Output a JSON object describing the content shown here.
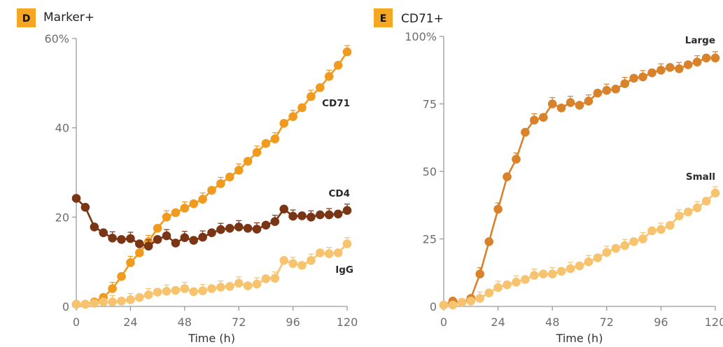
{
  "colors": {
    "label_box": "#F5A623",
    "axis": "#9a9a9a",
    "cd71": "#F09A1E",
    "cd4": "#7A3515",
    "igg": "#F7C36E",
    "large": "#D9822B",
    "small": "#F7C36E"
  },
  "chart_data": [
    {
      "type": "line",
      "panel_label": "D",
      "title": "Marker+",
      "xlabel": "Time (h)",
      "ylabel": "",
      "xlim": [
        0,
        120
      ],
      "ylim": [
        0,
        60
      ],
      "x_ticks": [
        "0",
        "24",
        "48",
        "72",
        "96",
        "120"
      ],
      "y_ticks": [
        "0",
        "20",
        "40",
        "60%"
      ],
      "x": [
        0,
        4,
        8,
        12,
        16,
        20,
        24,
        28,
        32,
        36,
        40,
        44,
        48,
        52,
        56,
        60,
        64,
        68,
        72,
        76,
        80,
        84,
        88,
        92,
        96,
        100,
        104,
        108,
        112,
        116,
        120
      ],
      "series": [
        {
          "name": "CD71",
          "color_key": "cd71",
          "values": [
            0.5,
            0.5,
            1,
            2,
            4,
            6.7,
            9.8,
            12,
            14.5,
            17.5,
            20,
            21,
            22,
            23,
            24,
            26,
            27.5,
            29,
            30.5,
            32.5,
            34.5,
            36.5,
            37.5,
            41,
            42.5,
            44.5,
            47,
            49,
            51.5,
            54,
            57
          ]
        },
        {
          "name": "CD4",
          "color_key": "cd4",
          "values": [
            24.2,
            22.2,
            17.8,
            16.5,
            15.3,
            15,
            15.2,
            14,
            13.5,
            15,
            15.8,
            14.2,
            15.4,
            14.8,
            15.5,
            16.5,
            17.2,
            17.5,
            17.8,
            17.5,
            17.3,
            18.2,
            19,
            21.8,
            20.2,
            20.3,
            20,
            20.5,
            20.5,
            20.7,
            21.5
          ]
        },
        {
          "name": "IgG",
          "color_key": "igg",
          "values": [
            0.5,
            0.5,
            0.7,
            1,
            1,
            1.2,
            1.5,
            2,
            2.6,
            3.2,
            3.4,
            3.6,
            4,
            3.3,
            3.5,
            4,
            4.3,
            4.5,
            5.2,
            4.6,
            5,
            6.2,
            6.3,
            10.3,
            9.6,
            9.2,
            10.3,
            12,
            11.8,
            12,
            14
          ]
        }
      ]
    },
    {
      "type": "line",
      "panel_label": "E",
      "title": "CD71+",
      "xlabel": "Time (h)",
      "ylabel": "",
      "xlim": [
        0,
        120
      ],
      "ylim": [
        0,
        100
      ],
      "x_ticks": [
        "0",
        "24",
        "48",
        "72",
        "96",
        "120"
      ],
      "y_ticks": [
        "0",
        "25",
        "50",
        "75",
        "100%"
      ],
      "x": [
        0,
        4,
        8,
        12,
        16,
        20,
        24,
        28,
        32,
        36,
        40,
        44,
        48,
        52,
        56,
        60,
        64,
        68,
        72,
        76,
        80,
        84,
        88,
        92,
        96,
        100,
        104,
        108,
        112,
        116,
        120
      ],
      "series": [
        {
          "name": "Large",
          "color_key": "large",
          "values": [
            0.5,
            2,
            1.5,
            3,
            12,
            24,
            36,
            48,
            54.5,
            64.5,
            69,
            70,
            75,
            73.5,
            75.5,
            74.5,
            76,
            79,
            80,
            80.5,
            82.5,
            84.5,
            85,
            86.5,
            87.5,
            88.5,
            88,
            89.5,
            90.5,
            92,
            92
          ]
        },
        {
          "name": "Small",
          "color_key": "small",
          "values": [
            0.5,
            0.5,
            1.5,
            2,
            3,
            5,
            7,
            8,
            9,
            10,
            11.5,
            12,
            12,
            13,
            14,
            15,
            16.5,
            18,
            20,
            21.5,
            22.5,
            24,
            25,
            28,
            28.5,
            30,
            33.5,
            35,
            36.5,
            39,
            42
          ]
        }
      ]
    }
  ]
}
